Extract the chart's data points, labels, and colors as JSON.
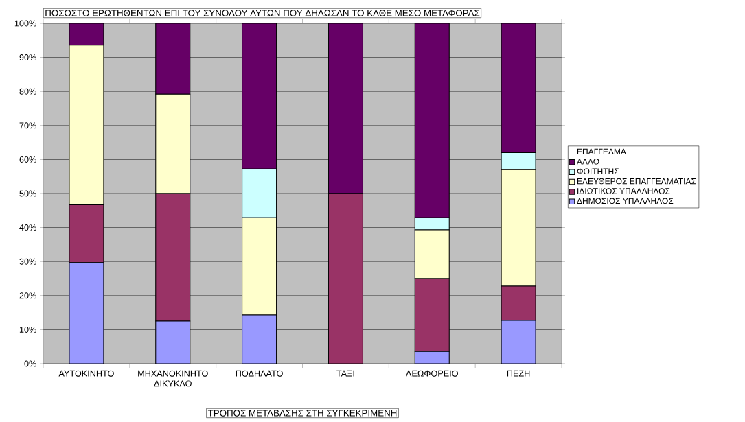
{
  "chart_data": {
    "type": "bar",
    "stacked": true,
    "title": "ΠΟΣΟΣΤΟ ΕΡΩΤΗΘΕΝΤΩΝ ΕΠΙ ΤΟΥ ΣΥΝΟΛΟΥ ΑΥΤΩΝ ΠΟΥ ΔΗΛΩΣΑΝ ΤΟ ΚΑΘΕ ΜΕΣΟ ΜΕΤΑΦΟΡΑΣ",
    "xlabel": "ΤΡΟΠΟΣ ΜΕΤΑΒΑΣΗΣ ΣΤΗ ΣΥΓΚΕΚΡΙΜΕΝΗ",
    "legend_title": "ΕΠΑΓΓΕΛΜΑ",
    "categories": [
      "ΑΥΤΟΚΙΝΗΤΟ",
      "ΜΗΧΑΝΟΚΙΝΗΤΟ ΔΙΚΥΚΛΟ",
      "ΠΟΔΗΛΑΤΟ",
      "ΤΑΞΙ",
      "ΛΕΩΦΟΡΕΙΟ",
      "ΠΕΖΗ"
    ],
    "series": [
      {
        "name": "ΔΗΜΟΣΙΟΣ ΥΠΑΛΛΗΛΟΣ",
        "color": "#9999ff",
        "values": [
          29.7,
          12.5,
          14.3,
          0,
          3.6,
          12.7
        ]
      },
      {
        "name": "ΙΔΙΩΤΙΚΟΣ ΥΠΑΛΛΗΛΟΣ",
        "color": "#993366",
        "values": [
          17.0,
          37.5,
          0,
          50,
          21.4,
          10.1
        ]
      },
      {
        "name": "ΕΛΕΥΘΕΡΟΣ ΕΠΑΓΓΕΛΜΑΤΙΑΣ",
        "color": "#ffffcc",
        "values": [
          46.9,
          29.2,
          28.6,
          0,
          14.3,
          34.2
        ]
      },
      {
        "name": "ΦΟΙΤΗΤΗΣ",
        "color": "#ccffff",
        "values": [
          0,
          0,
          14.3,
          0,
          3.6,
          5.0
        ]
      },
      {
        "name": "ΑΛΛΟ",
        "color": "#660066",
        "values": [
          6.4,
          20.8,
          42.8,
          50,
          57.1,
          38.0
        ]
      }
    ],
    "ylim": [
      0,
      100
    ],
    "yticks": [
      {
        "value": 0,
        "label": "0%"
      },
      {
        "value": 10,
        "label": "10%"
      },
      {
        "value": 20,
        "label": "20%"
      },
      {
        "value": 30,
        "label": "30%"
      },
      {
        "value": 40,
        "label": "40%"
      },
      {
        "value": 50,
        "label": "50%"
      },
      {
        "value": 60,
        "label": "60%"
      },
      {
        "value": 70,
        "label": "70%"
      },
      {
        "value": 80,
        "label": "80%"
      },
      {
        "value": 90,
        "label": "90%"
      },
      {
        "value": 100,
        "label": "100%"
      }
    ],
    "grid": "y",
    "legend": "right"
  }
}
